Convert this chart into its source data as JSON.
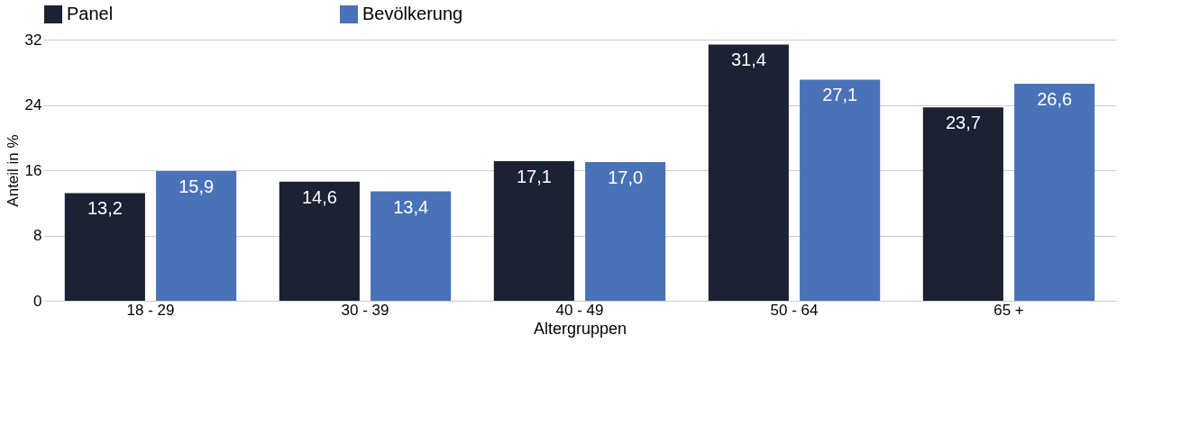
{
  "chart_data": {
    "type": "bar",
    "xlabel": "Altergruppen",
    "ylabel": "Anteil in %",
    "categories": [
      "18 - 29",
      "30 - 39",
      "40 - 49",
      "50 - 64",
      "65 +"
    ],
    "series": [
      {
        "name": "Panel",
        "color": "#1c2133",
        "values": [
          13.2,
          14.6,
          17.1,
          31.4,
          23.7
        ],
        "value_labels": [
          "13,2",
          "14,6",
          "17,1",
          "31,4",
          "23,7"
        ]
      },
      {
        "name": "Bevölkerung",
        "color": "#4a72b8",
        "values": [
          15.9,
          13.4,
          17.0,
          27.1,
          26.6
        ],
        "value_labels": [
          "15,9",
          "13,4",
          "17,0",
          "27,1",
          "26,6"
        ]
      }
    ],
    "ylim": [
      0,
      32
    ],
    "yticks": [
      0,
      8,
      16,
      24,
      32
    ],
    "grid": "y",
    "legend": "top"
  }
}
